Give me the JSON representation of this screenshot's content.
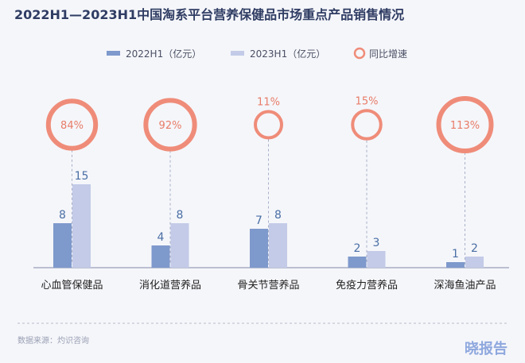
{
  "chart_data": {
    "type": "bar",
    "title": "2022H1—2023H1中国淘系平台营养保健品市场重点产品销售情况",
    "categories": [
      "心血管保健品",
      "消化道营养品",
      "骨关节营养品",
      "免疫力营养品",
      "深海鱼油产品"
    ],
    "series": [
      {
        "name": "2022H1（亿元）",
        "values": [
          8,
          4,
          7,
          2,
          1
        ],
        "color": "#7e99cc"
      },
      {
        "name": "2023H1（亿元）",
        "values": [
          15,
          8,
          8,
          3,
          2
        ],
        "color": "#c3cbe8"
      }
    ],
    "growth": {
      "name": "同比增速",
      "values": [
        "84%",
        "92%",
        "11%",
        "15%",
        "113%"
      ],
      "color": "#ef8c79"
    },
    "legend_position": "top-center",
    "grid": false
  },
  "source": "数据来源：灼识咨询",
  "brand": "晓报告"
}
